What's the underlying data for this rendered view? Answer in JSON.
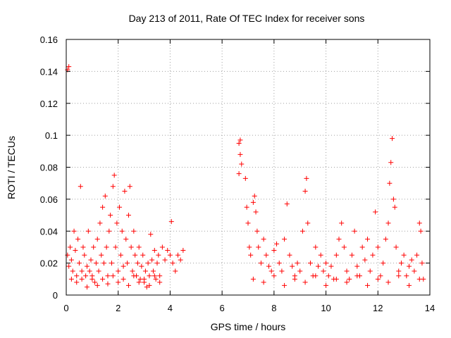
{
  "chart_data": {
    "type": "scatter",
    "title": "Day 213 of 2011, Rate Of TEC Index for receiver sons",
    "xlabel": "GPS time / hours",
    "ylabel": "ROTI / TECUs",
    "xlim": [
      0,
      14
    ],
    "ylim": [
      0,
      0.16
    ],
    "grid": true,
    "xticks": [
      "0",
      "2",
      "4",
      "6",
      "8",
      "10",
      "12",
      "14"
    ],
    "yticks": [
      "0",
      "0.02",
      "0.04",
      "0.06",
      "0.08",
      "0.1",
      "0.12",
      "0.14",
      "0.16"
    ],
    "marker": "+",
    "marker_color": "#ff0000",
    "series": [
      {
        "name": "ROTI",
        "points": [
          [
            0.05,
            0.141
          ],
          [
            0.1,
            0.143
          ],
          [
            0.05,
            0.025
          ],
          [
            0.1,
            0.018
          ],
          [
            0.15,
            0.03
          ],
          [
            0.2,
            0.022
          ],
          [
            0.25,
            0.015
          ],
          [
            0.3,
            0.04
          ],
          [
            0.35,
            0.028
          ],
          [
            0.4,
            0.012
          ],
          [
            0.45,
            0.035
          ],
          [
            0.5,
            0.02
          ],
          [
            0.55,
            0.068
          ],
          [
            0.6,
            0.01
          ],
          [
            0.65,
            0.03
          ],
          [
            0.7,
            0.025
          ],
          [
            0.75,
            0.012
          ],
          [
            0.8,
            0.018
          ],
          [
            0.85,
            0.04
          ],
          [
            0.9,
            0.015
          ],
          [
            0.95,
            0.022
          ],
          [
            1.0,
            0.01
          ],
          [
            1.05,
            0.03
          ],
          [
            1.1,
            0.008
          ],
          [
            1.15,
            0.02
          ],
          [
            1.2,
            0.035
          ],
          [
            1.25,
            0.015
          ],
          [
            1.3,
            0.045
          ],
          [
            1.35,
            0.025
          ],
          [
            1.4,
            0.055
          ],
          [
            1.45,
            0.02
          ],
          [
            1.5,
            0.062
          ],
          [
            1.55,
            0.03
          ],
          [
            1.6,
            0.012
          ],
          [
            1.65,
            0.04
          ],
          [
            1.7,
            0.05
          ],
          [
            1.75,
            0.02
          ],
          [
            1.8,
            0.068
          ],
          [
            1.85,
            0.075
          ],
          [
            1.9,
            0.03
          ],
          [
            1.95,
            0.045
          ],
          [
            2.0,
            0.015
          ],
          [
            2.05,
            0.055
          ],
          [
            2.1,
            0.025
          ],
          [
            2.15,
            0.04
          ],
          [
            2.2,
            0.018
          ],
          [
            2.25,
            0.065
          ],
          [
            2.3,
            0.035
          ],
          [
            2.35,
            0.02
          ],
          [
            2.4,
            0.05
          ],
          [
            2.45,
            0.068
          ],
          [
            2.5,
            0.03
          ],
          [
            2.55,
            0.015
          ],
          [
            2.6,
            0.04
          ],
          [
            2.65,
            0.025
          ],
          [
            2.7,
            0.012
          ],
          [
            2.75,
            0.02
          ],
          [
            2.8,
            0.03
          ],
          [
            2.85,
            0.01
          ],
          [
            2.9,
            0.018
          ],
          [
            2.95,
            0.025
          ],
          [
            3.0,
            0.008
          ],
          [
            3.05,
            0.015
          ],
          [
            3.1,
            0.005
          ],
          [
            3.15,
            0.02
          ],
          [
            3.2,
            0.012
          ],
          [
            3.25,
            0.038
          ],
          [
            3.3,
            0.022
          ],
          [
            3.35,
            0.015
          ],
          [
            3.4,
            0.028
          ],
          [
            3.45,
            0.01
          ],
          [
            3.5,
            0.02
          ],
          [
            3.55,
            0.025
          ],
          [
            3.6,
            0.012
          ],
          [
            3.7,
            0.03
          ],
          [
            3.8,
            0.022
          ],
          [
            3.9,
            0.028
          ],
          [
            4.0,
            0.025
          ],
          [
            4.05,
            0.046
          ],
          [
            4.1,
            0.02
          ],
          [
            4.2,
            0.015
          ],
          [
            4.3,
            0.025
          ],
          [
            4.4,
            0.022
          ],
          [
            4.5,
            0.028
          ],
          [
            0.2,
            0.01
          ],
          [
            0.4,
            0.008
          ],
          [
            0.6,
            0.015
          ],
          [
            0.8,
            0.005
          ],
          [
            1.0,
            0.012
          ],
          [
            1.2,
            0.006
          ],
          [
            1.4,
            0.01
          ],
          [
            1.6,
            0.007
          ],
          [
            1.8,
            0.012
          ],
          [
            2.0,
            0.008
          ],
          [
            2.2,
            0.01
          ],
          [
            2.4,
            0.006
          ],
          [
            2.6,
            0.012
          ],
          [
            2.8,
            0.008
          ],
          [
            3.0,
            0.01
          ],
          [
            3.2,
            0.006
          ],
          [
            3.4,
            0.012
          ],
          [
            3.6,
            0.008
          ],
          [
            6.65,
            0.095
          ],
          [
            6.7,
            0.097
          ],
          [
            6.7,
            0.088
          ],
          [
            6.75,
            0.082
          ],
          [
            6.65,
            0.076
          ],
          [
            6.9,
            0.073
          ],
          [
            6.95,
            0.055
          ],
          [
            7.0,
            0.045
          ],
          [
            7.05,
            0.03
          ],
          [
            7.1,
            0.025
          ],
          [
            7.2,
            0.058
          ],
          [
            7.25,
            0.062
          ],
          [
            7.3,
            0.052
          ],
          [
            7.35,
            0.04
          ],
          [
            7.4,
            0.03
          ],
          [
            7.5,
            0.02
          ],
          [
            7.6,
            0.035
          ],
          [
            7.7,
            0.025
          ],
          [
            7.8,
            0.018
          ],
          [
            7.9,
            0.015
          ],
          [
            8.0,
            0.028
          ],
          [
            8.1,
            0.032
          ],
          [
            8.2,
            0.02
          ],
          [
            8.3,
            0.015
          ],
          [
            8.4,
            0.035
          ],
          [
            8.5,
            0.057
          ],
          [
            8.6,
            0.025
          ],
          [
            8.7,
            0.018
          ],
          [
            8.8,
            0.012
          ],
          [
            8.9,
            0.02
          ],
          [
            9.0,
            0.015
          ],
          [
            9.1,
            0.04
          ],
          [
            9.2,
            0.065
          ],
          [
            9.25,
            0.073
          ],
          [
            9.3,
            0.045
          ],
          [
            9.4,
            0.02
          ],
          [
            9.5,
            0.012
          ],
          [
            9.6,
            0.03
          ],
          [
            9.7,
            0.018
          ],
          [
            9.8,
            0.025
          ],
          [
            9.9,
            0.015
          ],
          [
            10.0,
            0.02
          ],
          [
            10.1,
            0.012
          ],
          [
            10.2,
            0.018
          ],
          [
            10.3,
            0.01
          ],
          [
            10.4,
            0.025
          ],
          [
            10.5,
            0.035
          ],
          [
            10.6,
            0.045
          ],
          [
            10.7,
            0.03
          ],
          [
            10.8,
            0.015
          ],
          [
            10.9,
            0.01
          ],
          [
            11.0,
            0.025
          ],
          [
            11.1,
            0.04
          ],
          [
            11.2,
            0.018
          ],
          [
            11.3,
            0.012
          ],
          [
            11.4,
            0.03
          ],
          [
            11.5,
            0.022
          ],
          [
            11.6,
            0.035
          ],
          [
            11.7,
            0.015
          ],
          [
            11.8,
            0.025
          ],
          [
            11.9,
            0.052
          ],
          [
            12.0,
            0.03
          ],
          [
            12.1,
            0.012
          ],
          [
            12.2,
            0.02
          ],
          [
            12.3,
            0.035
          ],
          [
            12.4,
            0.045
          ],
          [
            12.45,
            0.07
          ],
          [
            12.5,
            0.083
          ],
          [
            12.55,
            0.098
          ],
          [
            12.6,
            0.06
          ],
          [
            12.65,
            0.055
          ],
          [
            12.7,
            0.03
          ],
          [
            12.8,
            0.015
          ],
          [
            12.9,
            0.02
          ],
          [
            13.0,
            0.025
          ],
          [
            13.1,
            0.012
          ],
          [
            13.2,
            0.018
          ],
          [
            13.3,
            0.022
          ],
          [
            13.4,
            0.015
          ],
          [
            13.5,
            0.025
          ],
          [
            13.6,
            0.045
          ],
          [
            13.65,
            0.04
          ],
          [
            13.7,
            0.02
          ],
          [
            13.75,
            0.01
          ],
          [
            7.2,
            0.01
          ],
          [
            7.6,
            0.008
          ],
          [
            8.0,
            0.012
          ],
          [
            8.4,
            0.006
          ],
          [
            8.8,
            0.01
          ],
          [
            9.2,
            0.008
          ],
          [
            9.6,
            0.012
          ],
          [
            10.0,
            0.006
          ],
          [
            10.4,
            0.01
          ],
          [
            10.8,
            0.008
          ],
          [
            11.2,
            0.012
          ],
          [
            11.6,
            0.006
          ],
          [
            12.0,
            0.01
          ],
          [
            12.4,
            0.008
          ],
          [
            12.8,
            0.012
          ],
          [
            13.2,
            0.006
          ],
          [
            13.6,
            0.01
          ]
        ]
      }
    ]
  }
}
